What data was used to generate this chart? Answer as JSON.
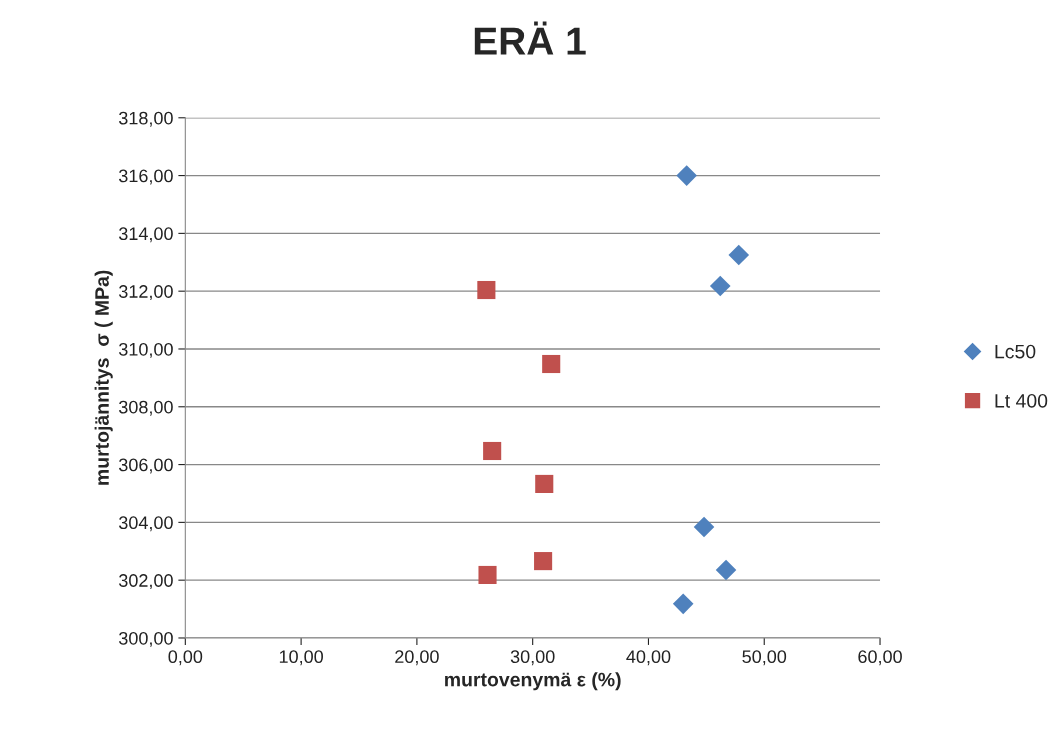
{
  "chart_data": {
    "type": "scatter",
    "title": "ERÄ 1",
    "xlabel": "murtovenymä ε (%)",
    "ylabel": "murtojännitys  σ ( MPa)",
    "series": [
      {
        "name": "Lc50",
        "color": "#4f81bd",
        "marker": "diamond",
        "x": [
          43.3,
          47.8,
          46.2,
          44.8,
          46.7,
          43.0
        ],
        "values": [
          316.0,
          313.25,
          312.18,
          303.84,
          302.35,
          301.18
        ]
      },
      {
        "name": "Lt 400",
        "color": "#c0504d",
        "marker": "square",
        "x": [
          26.0,
          31.6,
          26.5,
          31.0,
          30.9,
          26.1
        ],
        "values": [
          312.04,
          309.48,
          306.47,
          305.33,
          302.66,
          302.18
        ]
      }
    ],
    "xlim": [
      0,
      60
    ],
    "ylim": [
      300,
      318
    ],
    "xticks": [
      {
        "value": 0,
        "label": "0,00"
      },
      {
        "value": 10,
        "label": "10,00"
      },
      {
        "value": 20,
        "label": "20,00"
      },
      {
        "value": 30,
        "label": "30,00"
      },
      {
        "value": 40,
        "label": "40,00"
      },
      {
        "value": 50,
        "label": "50,00"
      },
      {
        "value": 60,
        "label": "60,00"
      }
    ],
    "yticks": [
      {
        "value": 300,
        "label": "300,00"
      },
      {
        "value": 302,
        "label": "302,00"
      },
      {
        "value": 304,
        "label": "304,00"
      },
      {
        "value": 306,
        "label": "306,00"
      },
      {
        "value": 308,
        "label": "308,00"
      },
      {
        "value": 310,
        "label": "310,00"
      },
      {
        "value": 312,
        "label": "312,00"
      },
      {
        "value": 314,
        "label": "314,00"
      },
      {
        "value": 316,
        "label": "316,00"
      },
      {
        "value": 318,
        "label": "318,00"
      }
    ],
    "grid": "y",
    "legend": "right"
  }
}
